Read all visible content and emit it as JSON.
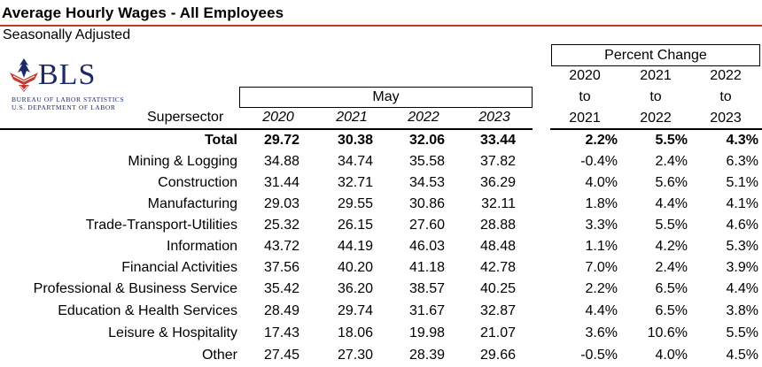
{
  "title": "Average Hourly Wages - All Employees",
  "subtitle": "Seasonally Adjusted",
  "logo": {
    "text": "BLS",
    "line1": "BUREAU OF LABOR STATISTICS",
    "line2": "U.S. DEPARTMENT OF LABOR"
  },
  "headers": {
    "percent_change": "Percent Change",
    "may": "May",
    "supersector": "Supersector",
    "years": [
      "2020",
      "2021",
      "2022",
      "2023"
    ],
    "pct_cols": [
      {
        "from": "2020",
        "to_word": "to",
        "to": "2021"
      },
      {
        "from": "2021",
        "to_word": "to",
        "to": "2022"
      },
      {
        "from": "2022",
        "to_word": "to",
        "to": "2023"
      }
    ]
  },
  "rows": [
    {
      "label": "Total",
      "v": [
        "29.72",
        "30.38",
        "32.06",
        "33.44"
      ],
      "p": [
        "2.2%",
        "5.5%",
        "4.3%"
      ]
    },
    {
      "label": "Mining & Logging",
      "v": [
        "34.88",
        "34.74",
        "35.58",
        "37.82"
      ],
      "p": [
        "-0.4%",
        "2.4%",
        "6.3%"
      ]
    },
    {
      "label": "Construction",
      "v": [
        "31.44",
        "32.71",
        "34.53",
        "36.29"
      ],
      "p": [
        "4.0%",
        "5.6%",
        "5.1%"
      ]
    },
    {
      "label": "Manufacturing",
      "v": [
        "29.03",
        "29.55",
        "30.86",
        "32.11"
      ],
      "p": [
        "1.8%",
        "4.4%",
        "4.1%"
      ]
    },
    {
      "label": "Trade-Transport-Utilities",
      "v": [
        "25.32",
        "26.15",
        "27.60",
        "28.88"
      ],
      "p": [
        "3.3%",
        "5.5%",
        "4.6%"
      ]
    },
    {
      "label": "Information",
      "v": [
        "43.72",
        "44.19",
        "46.03",
        "48.48"
      ],
      "p": [
        "1.1%",
        "4.2%",
        "5.3%"
      ]
    },
    {
      "label": "Financial Activities",
      "v": [
        "37.56",
        "40.20",
        "41.18",
        "42.78"
      ],
      "p": [
        "7.0%",
        "2.4%",
        "3.9%"
      ]
    },
    {
      "label": "Professional & Business Service",
      "v": [
        "35.42",
        "36.20",
        "38.57",
        "40.25"
      ],
      "p": [
        "2.2%",
        "6.5%",
        "4.4%"
      ]
    },
    {
      "label": "Education & Health Services",
      "v": [
        "28.49",
        "29.74",
        "31.67",
        "32.87"
      ],
      "p": [
        "4.4%",
        "6.5%",
        "3.8%"
      ]
    },
    {
      "label": "Leisure & Hospitality",
      "v": [
        "17.43",
        "18.06",
        "19.98",
        "21.07"
      ],
      "p": [
        "3.6%",
        "10.6%",
        "5.5%"
      ]
    },
    {
      "label": "Other",
      "v": [
        "27.45",
        "27.30",
        "28.39",
        "29.66"
      ],
      "p": [
        "-0.5%",
        "4.0%",
        "4.5%"
      ]
    }
  ]
}
